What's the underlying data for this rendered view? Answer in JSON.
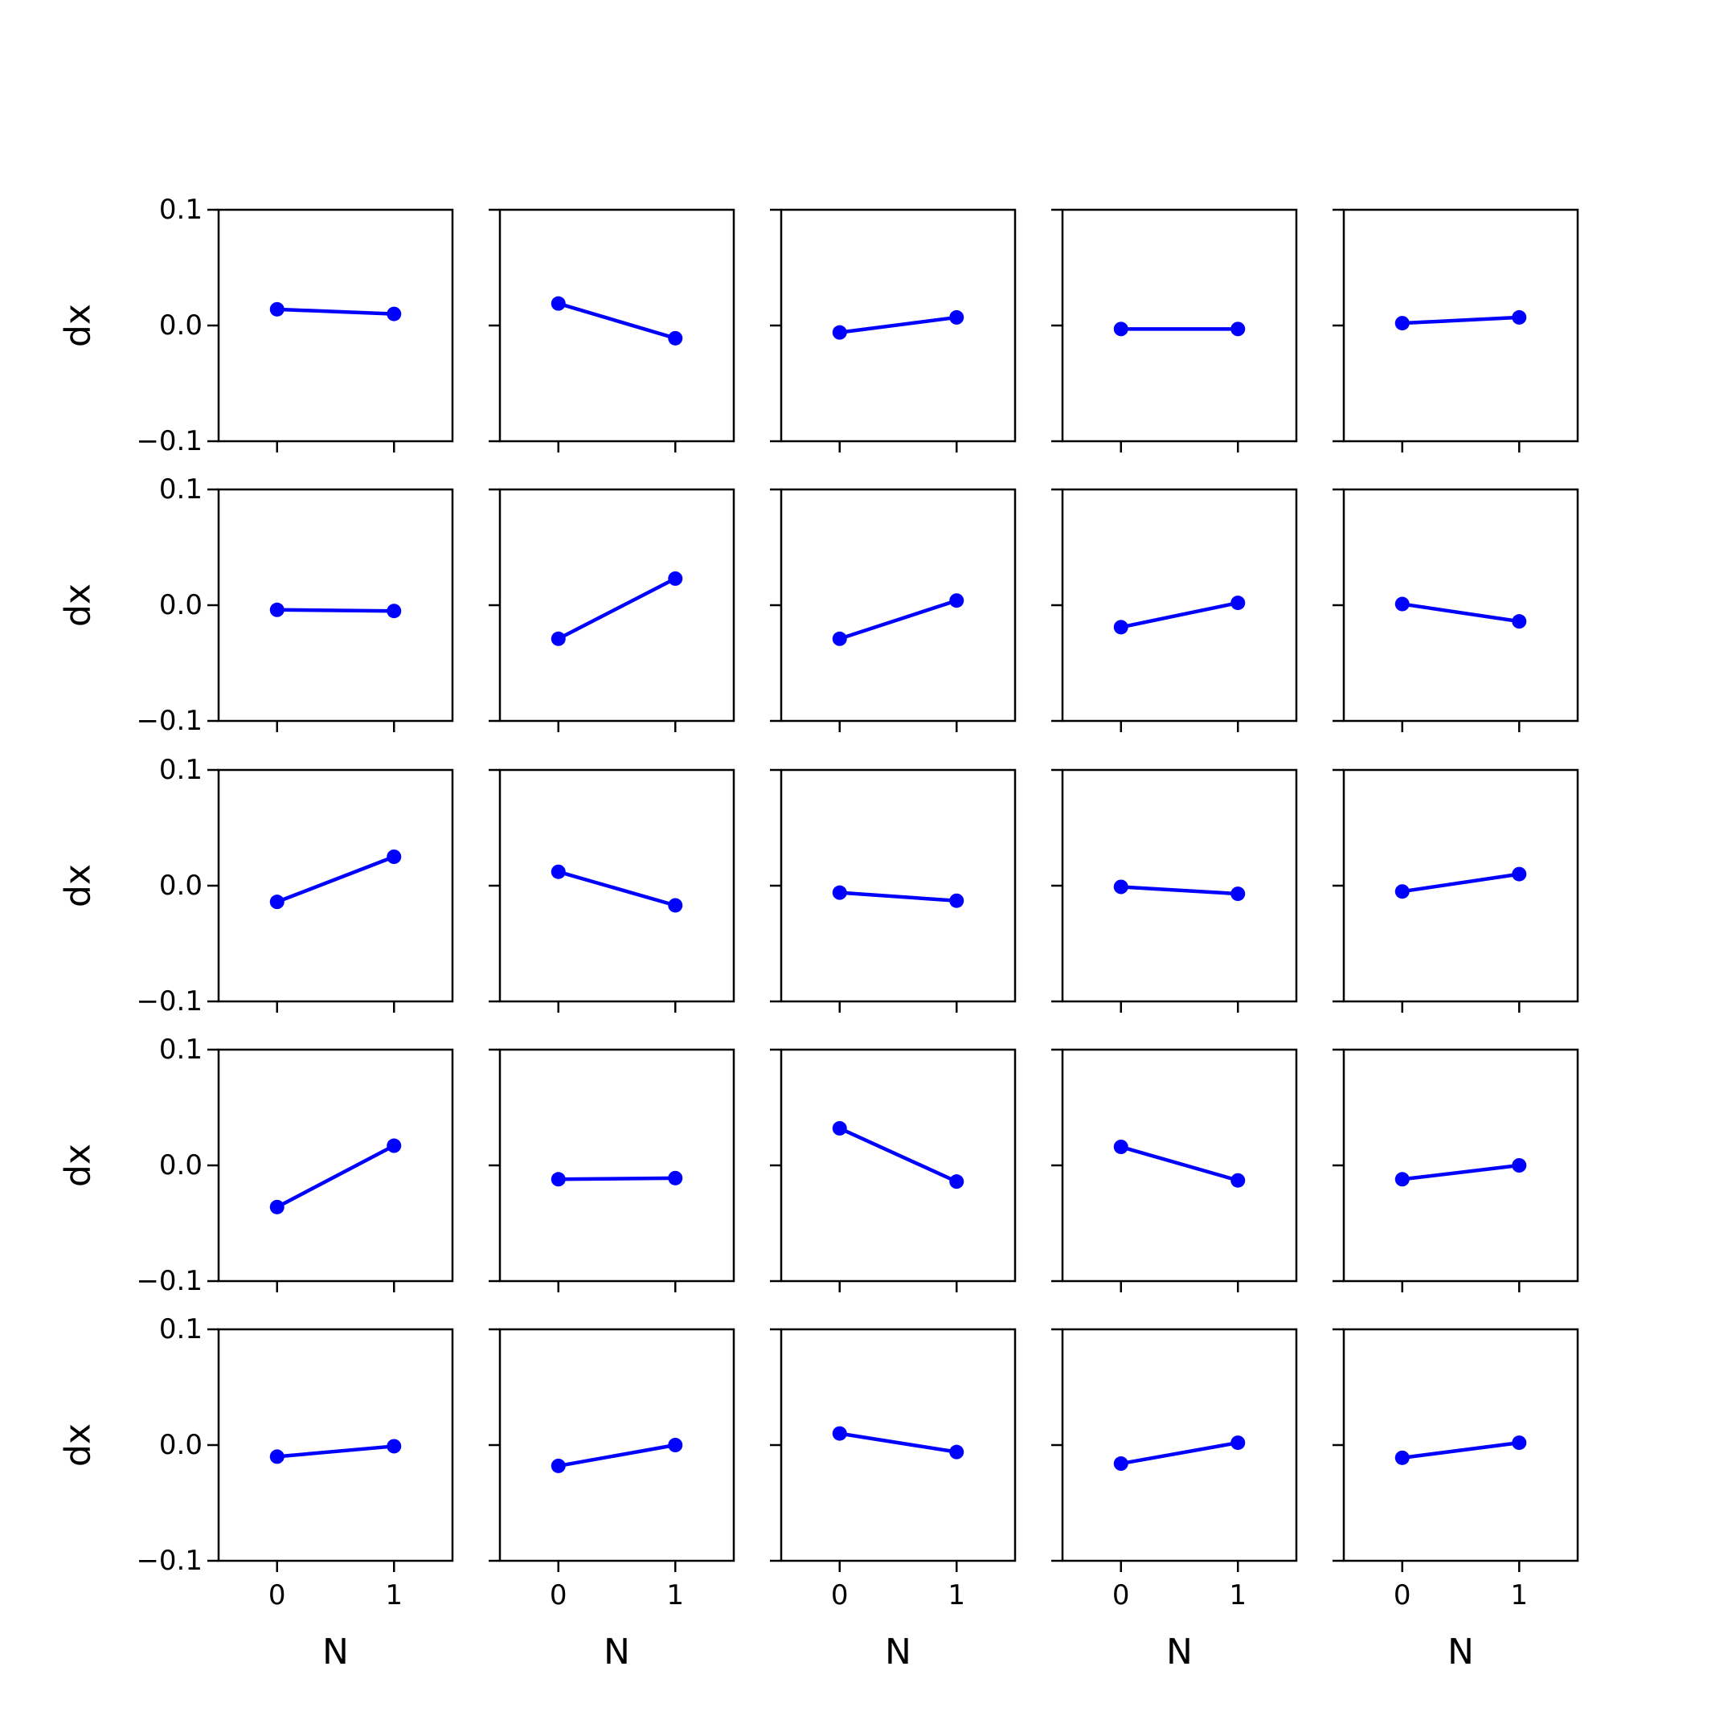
{
  "chart_data": {
    "type": "line",
    "layout": {
      "rows": 5,
      "cols": 5
    },
    "series_color": "#0000ff",
    "xlabel": "N",
    "ylabel": "dx",
    "x": [
      0,
      1
    ],
    "xlim": [
      -0.5,
      1.5
    ],
    "ylim": [
      -0.1,
      0.1
    ],
    "xticks": [
      0,
      1
    ],
    "xtick_labels": [
      "0",
      "1"
    ],
    "yticks": [
      -0.1,
      0.0,
      0.1
    ],
    "ytick_labels": [
      "−0.1",
      "0.0",
      "0.1"
    ],
    "grid": false,
    "panels": [
      {
        "y": [
          0.014,
          0.01
        ]
      },
      {
        "y": [
          0.019,
          -0.011
        ]
      },
      {
        "y": [
          -0.006,
          0.007
        ]
      },
      {
        "y": [
          -0.003,
          -0.003
        ]
      },
      {
        "y": [
          0.002,
          0.007
        ]
      },
      {
        "y": [
          -0.004,
          -0.005
        ]
      },
      {
        "y": [
          -0.029,
          0.023
        ]
      },
      {
        "y": [
          -0.029,
          0.004
        ]
      },
      {
        "y": [
          -0.019,
          0.002
        ]
      },
      {
        "y": [
          0.001,
          -0.014
        ]
      },
      {
        "y": [
          -0.014,
          0.025
        ]
      },
      {
        "y": [
          0.012,
          -0.017
        ]
      },
      {
        "y": [
          -0.006,
          -0.013
        ]
      },
      {
        "y": [
          -0.001,
          -0.007
        ]
      },
      {
        "y": [
          -0.005,
          0.01
        ]
      },
      {
        "y": [
          -0.036,
          0.017
        ]
      },
      {
        "y": [
          -0.012,
          -0.011
        ]
      },
      {
        "y": [
          0.032,
          -0.014
        ]
      },
      {
        "y": [
          0.016,
          -0.013
        ]
      },
      {
        "y": [
          -0.012,
          0.0
        ]
      },
      {
        "y": [
          -0.01,
          -0.001
        ]
      },
      {
        "y": [
          -0.018,
          0.0
        ]
      },
      {
        "y": [
          0.01,
          -0.006
        ]
      },
      {
        "y": [
          -0.016,
          0.002
        ]
      },
      {
        "y": [
          -0.011,
          0.002
        ]
      }
    ]
  }
}
